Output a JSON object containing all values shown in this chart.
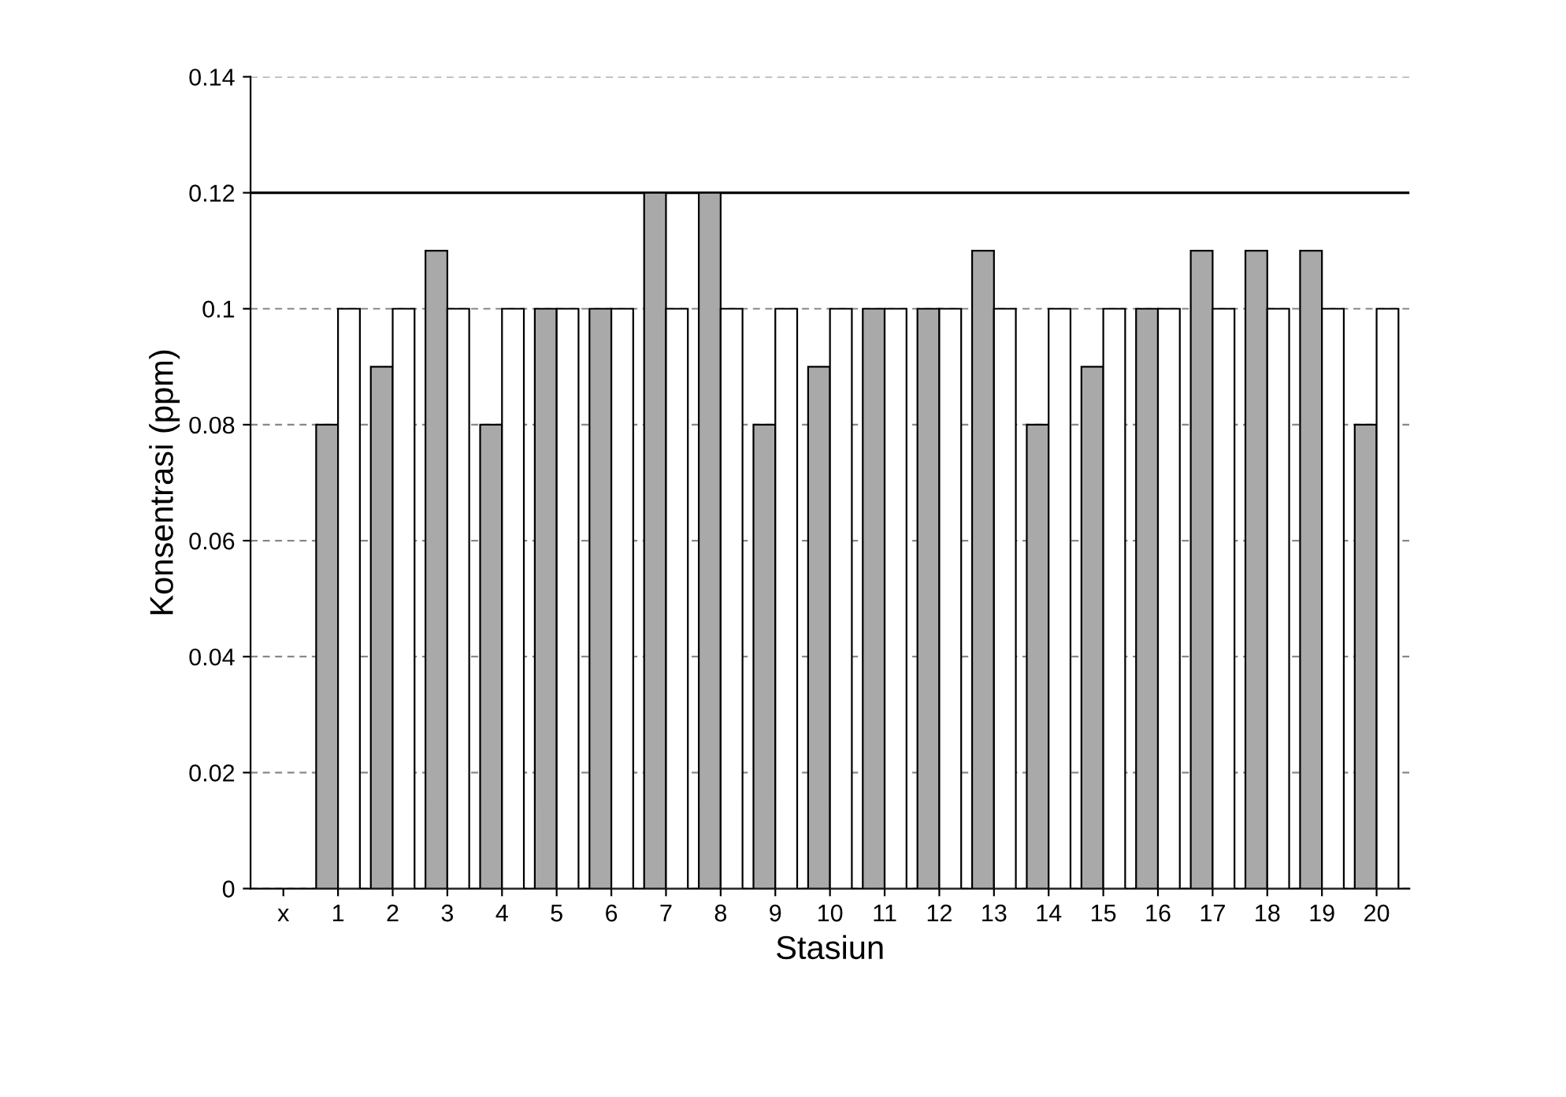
{
  "chart_data": {
    "type": "bar",
    "xlabel": "Stasiun",
    "ylabel": "Konsentrasi (ppm)",
    "categories": [
      "x",
      "1",
      "2",
      "3",
      "4",
      "5",
      "6",
      "7",
      "8",
      "9",
      "10",
      "11",
      "12",
      "13",
      "14",
      "15",
      "16",
      "17",
      "18",
      "19",
      "20"
    ],
    "series": [
      {
        "color": "#a9a9a9",
        "values": [
          null,
          0.08,
          0.09,
          0.11,
          0.08,
          0.1,
          0.1,
          0.12,
          0.12,
          0.08,
          0.09,
          0.1,
          0.1,
          0.11,
          0.08,
          0.09,
          0.1,
          0.11,
          0.11,
          0.11,
          0.08
        ]
      },
      {
        "color": "#ffffff",
        "values": [
          null,
          0.1,
          0.1,
          0.1,
          0.1,
          0.1,
          0.1,
          0.1,
          0.1,
          0.1,
          0.1,
          0.1,
          0.1,
          0.1,
          0.1,
          0.1,
          0.1,
          0.1,
          0.1,
          0.1,
          0.1
        ]
      }
    ],
    "ylim": [
      0,
      0.14
    ],
    "yticks": [
      {
        "value": 0,
        "label": "0"
      },
      {
        "value": 0.02,
        "label": "0.02"
      },
      {
        "value": 0.04,
        "label": "0.04"
      },
      {
        "value": 0.06,
        "label": "0.06"
      },
      {
        "value": 0.08,
        "label": "0.08"
      },
      {
        "value": 0.1,
        "label": "0.1"
      },
      {
        "value": 0.12,
        "label": "0.12"
      },
      {
        "value": 0.14,
        "label": "0.14"
      }
    ],
    "grid": "y",
    "ref_lines": [
      {
        "axis": "y",
        "value": 0.12,
        "color": "#000000",
        "line_style": "solid"
      }
    ]
  }
}
